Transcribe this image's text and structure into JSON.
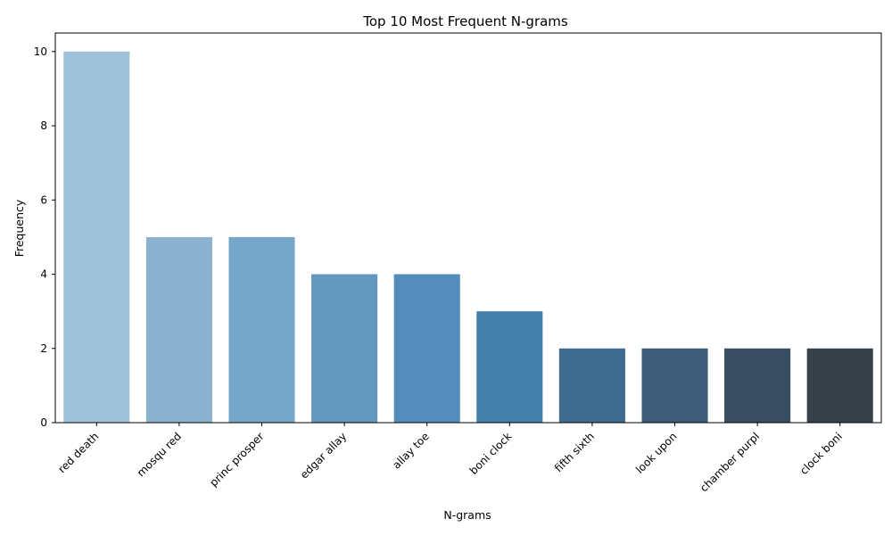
{
  "chart_data": {
    "type": "bar",
    "title": "Top 10 Most Frequent N-grams",
    "xlabel": "N-grams",
    "ylabel": "Frequency",
    "categories": [
      "red death",
      "mosqu red",
      "princ prosper",
      "edgar allay",
      "allay toe",
      "boni clock",
      "fifth sixth",
      "look upon",
      "chamber purpl",
      "clock boni"
    ],
    "values": [
      10,
      5,
      5,
      4,
      4,
      3,
      2,
      2,
      2,
      2
    ],
    "colors": [
      "#9fc2d9",
      "#8bb2cf",
      "#77a7c8",
      "#6498be",
      "#548dbb",
      "#457fab",
      "#3f6b8e",
      "#3e5c77",
      "#384d62",
      "#374149"
    ],
    "yticks": [
      0,
      2,
      4,
      6,
      8,
      10
    ],
    "ylim": [
      0,
      10.5
    ],
    "grid": false,
    "legend": "none"
  }
}
